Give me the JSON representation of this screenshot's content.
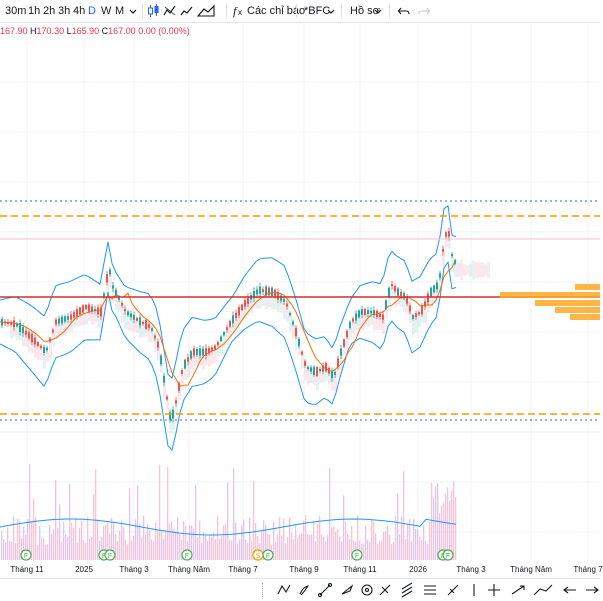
{
  "toolbar": {
    "intervals": [
      "30m",
      "1h",
      "2h",
      "3h",
      "4h",
      "D",
      "W",
      "M"
    ],
    "active_interval": "D",
    "indicators_label": "Các chỉ báo",
    "symbol_label": "*BFC",
    "profile_label": "Hồ sơ"
  },
  "ohlc": {
    "o_value": "167.90",
    "h_label": "H",
    "h_value": "170.30",
    "l_label": "L",
    "l_value": "165.90",
    "c_label": "C",
    "c_value": "167.00",
    "change": "0.00 (0.00%)"
  },
  "time_axis": {
    "labels": [
      "Tháng 11",
      "2025",
      "Tháng 3",
      "Tháng Năm",
      "Tháng 7",
      "Tháng 9",
      "Tháng 11",
      "2026",
      "Tháng 3",
      "Tháng Năm",
      "Tháng 7"
    ]
  },
  "markers": {
    "dividend_label": "F",
    "split_label": "S"
  },
  "colors": {
    "up": "#26a69a",
    "down": "#ef5350",
    "bollinger": "#2196f3",
    "ma": "#ff6d00",
    "support_line": "#d32f2f",
    "dashed_levels": "#ff9800",
    "volume_profile": "#ffa726",
    "volume_ma": "#2196f3",
    "accent": "#2962ff"
  },
  "icons": [
    "chevron-down-icon",
    "candle-style-icon",
    "compare-icon",
    "indicator-chart-icon",
    "function-icon",
    "undo-icon",
    "redo-icon",
    "trend-line-icon",
    "brush-icon",
    "measure-icon",
    "crosshair-icon",
    "arrow-icon"
  ]
}
